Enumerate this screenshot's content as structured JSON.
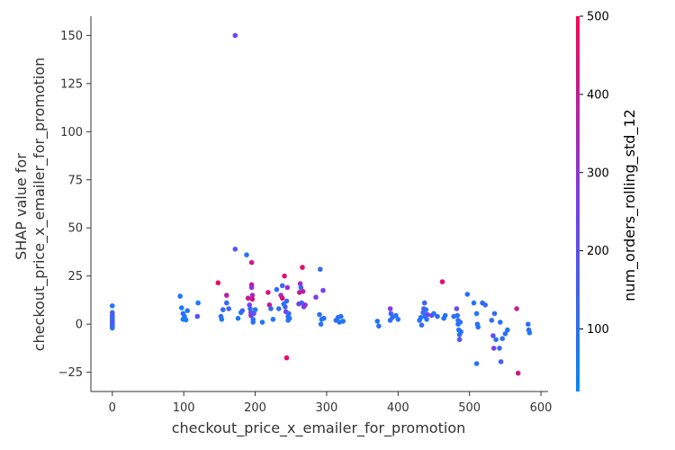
{
  "chart_data": {
    "type": "scatter",
    "xlabel": "checkout_price_x_emailer_for_promotion",
    "ylabel_lines": [
      "SHAP value for",
      "checkout_price_x_emailer_for_promotion"
    ],
    "xlim": [
      -30,
      610
    ],
    "ylim": [
      -35,
      160
    ],
    "xticks": [
      0,
      100,
      200,
      300,
      400,
      500,
      600
    ],
    "yticks": [
      -25,
      0,
      25,
      50,
      75,
      100,
      125,
      150
    ],
    "colorbar": {
      "label": "num_orders_rolling_std_12",
      "range": [
        20,
        500
      ],
      "ticks": [
        100,
        200,
        300,
        400,
        500
      ],
      "colors": [
        "#008afb",
        "#7a3df0",
        "#ff0052"
      ]
    },
    "points": [
      [
        0,
        9.5,
        80
      ],
      [
        0,
        6,
        150
      ],
      [
        0,
        4.5,
        220
      ],
      [
        0,
        3.5,
        100
      ],
      [
        0,
        2.5,
        180
      ],
      [
        0,
        1.8,
        90
      ],
      [
        0,
        1,
        200
      ],
      [
        0,
        0.3,
        120
      ],
      [
        0,
        -0.3,
        250
      ],
      [
        0,
        -1,
        90
      ],
      [
        0,
        -1.5,
        160
      ],
      [
        0,
        -2,
        110
      ],
      [
        95,
        14.5,
        80
      ],
      [
        97,
        8.5,
        60
      ],
      [
        99,
        5.5,
        120
      ],
      [
        101,
        4,
        90
      ],
      [
        99,
        2.5,
        70
      ],
      [
        103,
        2.2,
        60
      ],
      [
        105,
        7,
        80
      ],
      [
        120,
        11,
        70
      ],
      [
        119,
        4,
        180
      ],
      [
        148,
        21.5,
        460
      ],
      [
        152,
        4,
        100
      ],
      [
        155,
        7.5,
        120
      ],
      [
        153,
        2.5,
        90
      ],
      [
        160,
        15,
        380
      ],
      [
        160,
        11,
        130
      ],
      [
        163,
        8,
        140
      ],
      [
        172,
        150,
        240
      ],
      [
        172,
        39,
        180
      ],
      [
        176,
        3,
        80
      ],
      [
        180,
        6,
        70
      ],
      [
        182,
        7,
        160
      ],
      [
        188,
        36,
        100
      ],
      [
        190,
        13.5,
        400
      ],
      [
        192,
        10,
        260
      ],
      [
        193,
        8,
        110
      ],
      [
        194,
        6,
        240
      ],
      [
        194,
        4.5,
        300
      ],
      [
        195,
        32,
        420
      ],
      [
        195,
        20.5,
        400
      ],
      [
        195,
        19,
        300
      ],
      [
        196,
        15,
        330
      ],
      [
        196,
        13,
        420
      ],
      [
        197,
        2.5,
        100
      ],
      [
        197,
        1,
        90
      ],
      [
        198,
        5.5,
        200
      ],
      [
        200,
        7.5,
        90
      ],
      [
        210,
        1,
        80
      ],
      [
        218,
        16.5,
        420
      ],
      [
        220,
        10,
        400
      ],
      [
        222,
        8,
        130
      ],
      [
        225,
        2.5,
        80
      ],
      [
        230,
        18,
        100
      ],
      [
        233,
        8,
        110
      ],
      [
        236,
        15,
        330
      ],
      [
        238,
        13.5,
        440
      ],
      [
        238,
        20,
        140
      ],
      [
        240,
        10.5,
        90
      ],
      [
        241,
        25,
        440
      ],
      [
        242,
        9,
        150
      ],
      [
        243,
        6.5,
        260
      ],
      [
        244,
        12,
        120
      ],
      [
        245,
        19,
        300
      ],
      [
        246,
        4,
        100
      ],
      [
        246,
        2,
        80
      ],
      [
        247,
        5.5,
        110
      ],
      [
        248,
        3,
        90
      ],
      [
        244,
        -17.5,
        460
      ],
      [
        262,
        16.5,
        400
      ],
      [
        263,
        21,
        330
      ],
      [
        264,
        19,
        140
      ],
      [
        265,
        11,
        110
      ],
      [
        266,
        29.5,
        450
      ],
      [
        267,
        17,
        380
      ],
      [
        268,
        9,
        230
      ],
      [
        270,
        10,
        310
      ],
      [
        261,
        10.5,
        240
      ],
      [
        285,
        14,
        260
      ],
      [
        290,
        5,
        100
      ],
      [
        291,
        28.5,
        120
      ],
      [
        292,
        0,
        90
      ],
      [
        293,
        2.5,
        80
      ],
      [
        295,
        17.5,
        260
      ],
      [
        296,
        3,
        110
      ],
      [
        313,
        2,
        110
      ],
      [
        316,
        3.5,
        80
      ],
      [
        318,
        1,
        90
      ],
      [
        320,
        4,
        100
      ],
      [
        323,
        1.5,
        90
      ],
      [
        371,
        1.5,
        90
      ],
      [
        373,
        -1,
        100
      ],
      [
        389,
        8,
        270
      ],
      [
        390,
        5.5,
        140
      ],
      [
        392,
        3.5,
        120
      ],
      [
        397,
        4.5,
        100
      ],
      [
        400,
        2.5,
        90
      ],
      [
        389,
        2,
        100
      ],
      [
        430,
        2,
        110
      ],
      [
        432,
        3.5,
        80
      ],
      [
        433,
        -0.5,
        130
      ],
      [
        435,
        6,
        120
      ],
      [
        436,
        8,
        200
      ],
      [
        437,
        11,
        150
      ],
      [
        438,
        4,
        100
      ],
      [
        439,
        7.5,
        90
      ],
      [
        440,
        2.5,
        80
      ],
      [
        441,
        5,
        230
      ],
      [
        447,
        4.5,
        250
      ],
      [
        450,
        5.5,
        90
      ],
      [
        455,
        4,
        120
      ],
      [
        462,
        22,
        440
      ],
      [
        464,
        3,
        100
      ],
      [
        466,
        4.5,
        80
      ],
      [
        478,
        4,
        110
      ],
      [
        482,
        8,
        220
      ],
      [
        483,
        4.5,
        110
      ],
      [
        484,
        2,
        90
      ],
      [
        484,
        0,
        100
      ],
      [
        485,
        -3,
        80
      ],
      [
        486,
        -5.5,
        110
      ],
      [
        486,
        -8,
        180
      ],
      [
        487,
        1,
        90
      ],
      [
        488,
        -4,
        100
      ],
      [
        497,
        15.5,
        100
      ],
      [
        506,
        11,
        90
      ],
      [
        510,
        5.5,
        80
      ],
      [
        511,
        0,
        100
      ],
      [
        512,
        -1.5,
        90
      ],
      [
        510,
        -20.5,
        90
      ],
      [
        518,
        11,
        110
      ],
      [
        522,
        10,
        120
      ],
      [
        531,
        2,
        100
      ],
      [
        533,
        -6,
        200
      ],
      [
        534,
        -12.5,
        260
      ],
      [
        535,
        5.5,
        110
      ],
      [
        537,
        -8,
        90
      ],
      [
        542,
        -12.5,
        120
      ],
      [
        543,
        1,
        100
      ],
      [
        544,
        -19.5,
        150
      ],
      [
        546,
        -7.5,
        110
      ],
      [
        550,
        -5,
        100
      ],
      [
        553,
        -3,
        90
      ],
      [
        566,
        8,
        380
      ],
      [
        568,
        -25.5,
        410
      ],
      [
        582,
        0,
        110
      ],
      [
        583,
        -3,
        100
      ],
      [
        584,
        -4.5,
        90
      ]
    ]
  }
}
